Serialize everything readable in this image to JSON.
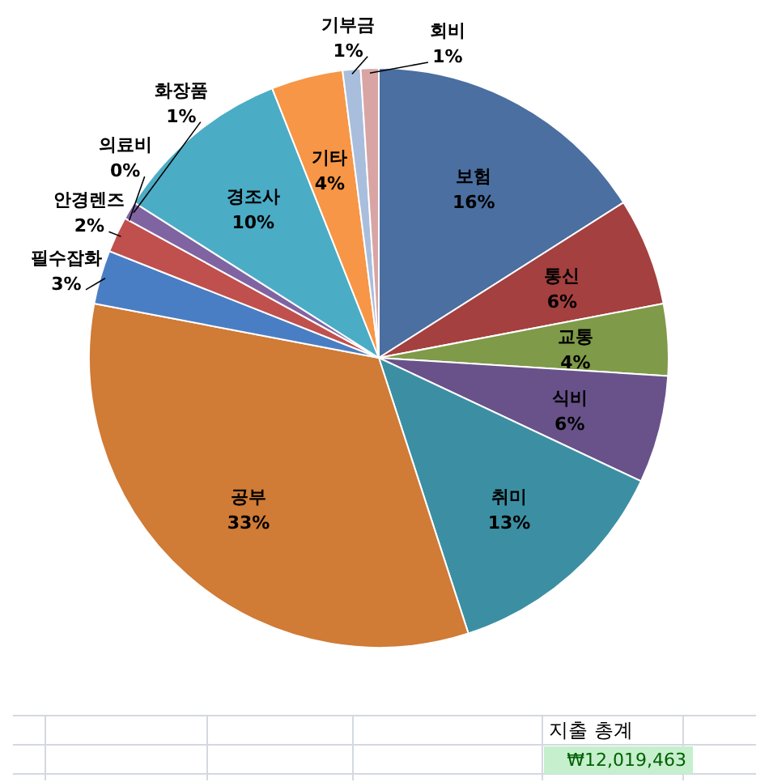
{
  "chart_data": {
    "type": "pie",
    "categories": [
      "보험",
      "통신",
      "교통",
      "식비",
      "취미",
      "공부",
      "필수잡화",
      "안경렌즈",
      "의료비",
      "화장품",
      "경조사",
      "기타",
      "기부금",
      "회비"
    ],
    "values": [
      16,
      6,
      4,
      6,
      13,
      33,
      3,
      2,
      0,
      1,
      10,
      4,
      1,
      1
    ],
    "colors": [
      "#4a6fa0",
      "#a4403f",
      "#7f9a48",
      "#69528a",
      "#3c8fa3",
      "#d07b36",
      "#4a7ec4",
      "#c0504d",
      "#9bbb59",
      "#8064a2",
      "#4bacc6",
      "#f79646",
      "#a9bedd",
      "#d8a4a4"
    ],
    "value_labels": [
      "16%",
      "6%",
      "4%",
      "6%",
      "13%",
      "33%",
      "3%",
      "2%",
      "0%",
      "1%",
      "10%",
      "4%",
      "1%",
      "1%"
    ],
    "annotations": [
      "지출 총계",
      "₩12,019,463"
    ]
  }
}
